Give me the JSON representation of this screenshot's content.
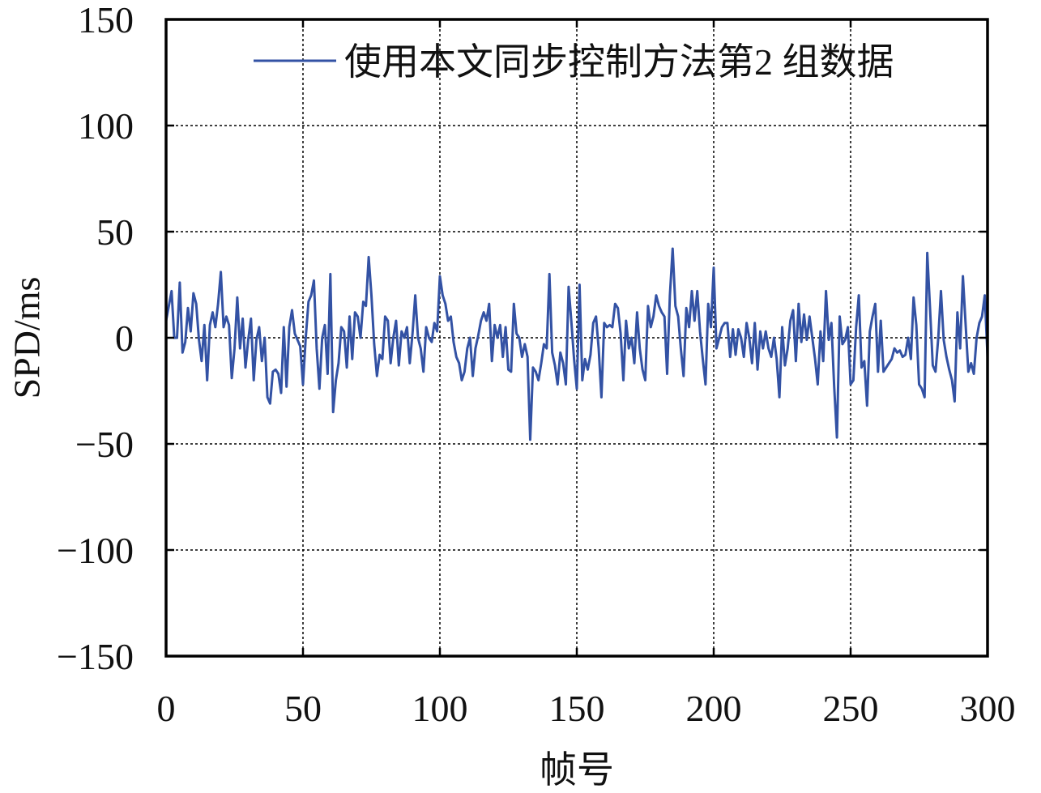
{
  "chart_data": {
    "type": "line",
    "xlabel": "帧号",
    "ylabel": "SPD/ms",
    "xlim": [
      0,
      300
    ],
    "ylim": [
      -150,
      150
    ],
    "xticks": [
      0,
      50,
      100,
      150,
      200,
      250,
      300
    ],
    "xtick_labels": [
      "0",
      "50",
      "100",
      "150",
      "200",
      "250",
      "300"
    ],
    "yticks": [
      150,
      100,
      50,
      0,
      -50,
      -100,
      -150
    ],
    "ytick_labels": [
      "150",
      "100",
      "50",
      "0",
      "−50",
      "−100",
      "−150"
    ],
    "grid": true,
    "legend": "top-right",
    "series": [
      {
        "name": "使用本文同步控制方法第2 组数据",
        "color": "#3352a4",
        "x": [
          0,
          1,
          2,
          3,
          4,
          5,
          6,
          7,
          8,
          9,
          10,
          11,
          12,
          13,
          14,
          15,
          16,
          17,
          18,
          19,
          20,
          21,
          22,
          23,
          24,
          25,
          26,
          27,
          28,
          29,
          30,
          31,
          32,
          33,
          34,
          35,
          36,
          37,
          38,
          39,
          40,
          41,
          42,
          43,
          44,
          45,
          46,
          47,
          48,
          49,
          50,
          51,
          52,
          53,
          54,
          55,
          56,
          57,
          58,
          59,
          60,
          61,
          62,
          63,
          64,
          65,
          66,
          67,
          68,
          69,
          70,
          71,
          72,
          73,
          74,
          75,
          76,
          77,
          78,
          79,
          80,
          81,
          82,
          83,
          84,
          85,
          86,
          87,
          88,
          89,
          90,
          91,
          92,
          93,
          94,
          95,
          96,
          97,
          98,
          99,
          100,
          101,
          102,
          103,
          104,
          105,
          106,
          107,
          108,
          109,
          110,
          111,
          112,
          113,
          114,
          115,
          116,
          117,
          118,
          119,
          120,
          121,
          122,
          123,
          124,
          125,
          126,
          127,
          128,
          129,
          130,
          131,
          132,
          133,
          134,
          135,
          136,
          137,
          138,
          139,
          140,
          141,
          142,
          143,
          144,
          145,
          146,
          147,
          148,
          149,
          150,
          151,
          152,
          153,
          154,
          155,
          156,
          157,
          158,
          159,
          160,
          161,
          162,
          163,
          164,
          165,
          166,
          167,
          168,
          169,
          170,
          171,
          172,
          173,
          174,
          175,
          176,
          177,
          178,
          179,
          180,
          181,
          182,
          183,
          184,
          185,
          186,
          187,
          188,
          189,
          190,
          191,
          192,
          193,
          194,
          195,
          196,
          197,
          198,
          199,
          200,
          201,
          202,
          203,
          204,
          205,
          206,
          207,
          208,
          209,
          210,
          211,
          212,
          213,
          214,
          215,
          216,
          217,
          218,
          219,
          220,
          221,
          222,
          223,
          224,
          225,
          226,
          227,
          228,
          229,
          230,
          231,
          232,
          233,
          234,
          235,
          236,
          237,
          238,
          239,
          240,
          241,
          242,
          243,
          244,
          245,
          246,
          247,
          248,
          249,
          250,
          251,
          252,
          253,
          254,
          255,
          256,
          257,
          258,
          259,
          260,
          261,
          262,
          263,
          264,
          265,
          266,
          267,
          268,
          269,
          270,
          271,
          272,
          273,
          274,
          275,
          276,
          277,
          278,
          279,
          280,
          281,
          282,
          283,
          284,
          285,
          286,
          287,
          288,
          289,
          290,
          291,
          292,
          293,
          294,
          295,
          296,
          297,
          298,
          299,
          300
        ],
        "values": [
          8,
          15,
          22,
          0,
          0,
          26,
          -7,
          -2,
          14,
          3,
          21,
          16,
          -1,
          -11,
          6,
          -20,
          6,
          12,
          5,
          16,
          31,
          5,
          10,
          6,
          -19,
          -5,
          19,
          -5,
          9,
          -14,
          -1,
          9,
          -20,
          -1,
          5,
          -11,
          0,
          -28,
          -31,
          -16,
          -15,
          -17,
          -26,
          5,
          -23,
          5,
          13,
          2,
          -1,
          -4,
          -22,
          0,
          17,
          20,
          27,
          -5,
          -24,
          0,
          6,
          -17,
          30,
          -35,
          -20,
          -12,
          5,
          3,
          -14,
          10,
          -10,
          12,
          10,
          0,
          17,
          15,
          38,
          20,
          -3,
          -18,
          -8,
          -10,
          10,
          8,
          -12,
          0,
          8,
          -13,
          3,
          0,
          5,
          -12,
          2,
          20,
          0,
          -5,
          -16,
          5,
          0,
          -2,
          7,
          3,
          29,
          20,
          16,
          8,
          10,
          -2,
          -9,
          -12,
          -20,
          -16,
          -5,
          0,
          -18,
          -5,
          1,
          8,
          12,
          8,
          16,
          -11,
          6,
          0,
          6,
          -9,
          5,
          -15,
          -16,
          16,
          2,
          0,
          -9,
          -3,
          -9,
          -48,
          -14,
          -16,
          -20,
          -12,
          -3,
          -5,
          30,
          -7,
          -13,
          -22,
          -7,
          -12,
          -22,
          24,
          8,
          -10,
          -24,
          25,
          -20,
          -10,
          -15,
          -8,
          7,
          10,
          -5,
          -28,
          7,
          5,
          6,
          5,
          16,
          14,
          2,
          -20,
          8,
          -5,
          0,
          -12,
          12,
          -5,
          -15,
          -20,
          15,
          5,
          10,
          20,
          15,
          12,
          10,
          -17,
          20,
          42,
          15,
          10,
          -5,
          -18,
          14,
          5,
          22,
          8,
          22,
          3,
          -10,
          -22,
          16,
          5,
          33,
          -5,
          0,
          5,
          7,
          7,
          -9,
          4,
          -8,
          4,
          0,
          -9,
          7,
          0,
          -12,
          7,
          -15,
          3,
          -5,
          3,
          -5,
          -9,
          0,
          -10,
          -28,
          5,
          -13,
          -5,
          8,
          13,
          -11,
          16,
          -2,
          11,
          -1,
          10,
          0,
          -10,
          -22,
          3,
          -11,
          22,
          -1,
          7,
          -23,
          -47,
          10,
          -3,
          -1,
          5,
          -22,
          -20,
          5,
          20,
          -14,
          -11,
          -32,
          3,
          10,
          16,
          -16,
          8,
          -16,
          -14,
          -12,
          -10,
          -5,
          -7,
          -6,
          -9,
          -8,
          0,
          -10,
          19,
          6,
          -22,
          -24,
          -28,
          40,
          14,
          -13,
          -16,
          0,
          22,
          -1,
          -9,
          -15,
          -20,
          -30,
          12,
          -5,
          29,
          6,
          -16,
          -12,
          -17,
          0,
          7,
          10,
          20,
          -9
        ]
      }
    ]
  }
}
